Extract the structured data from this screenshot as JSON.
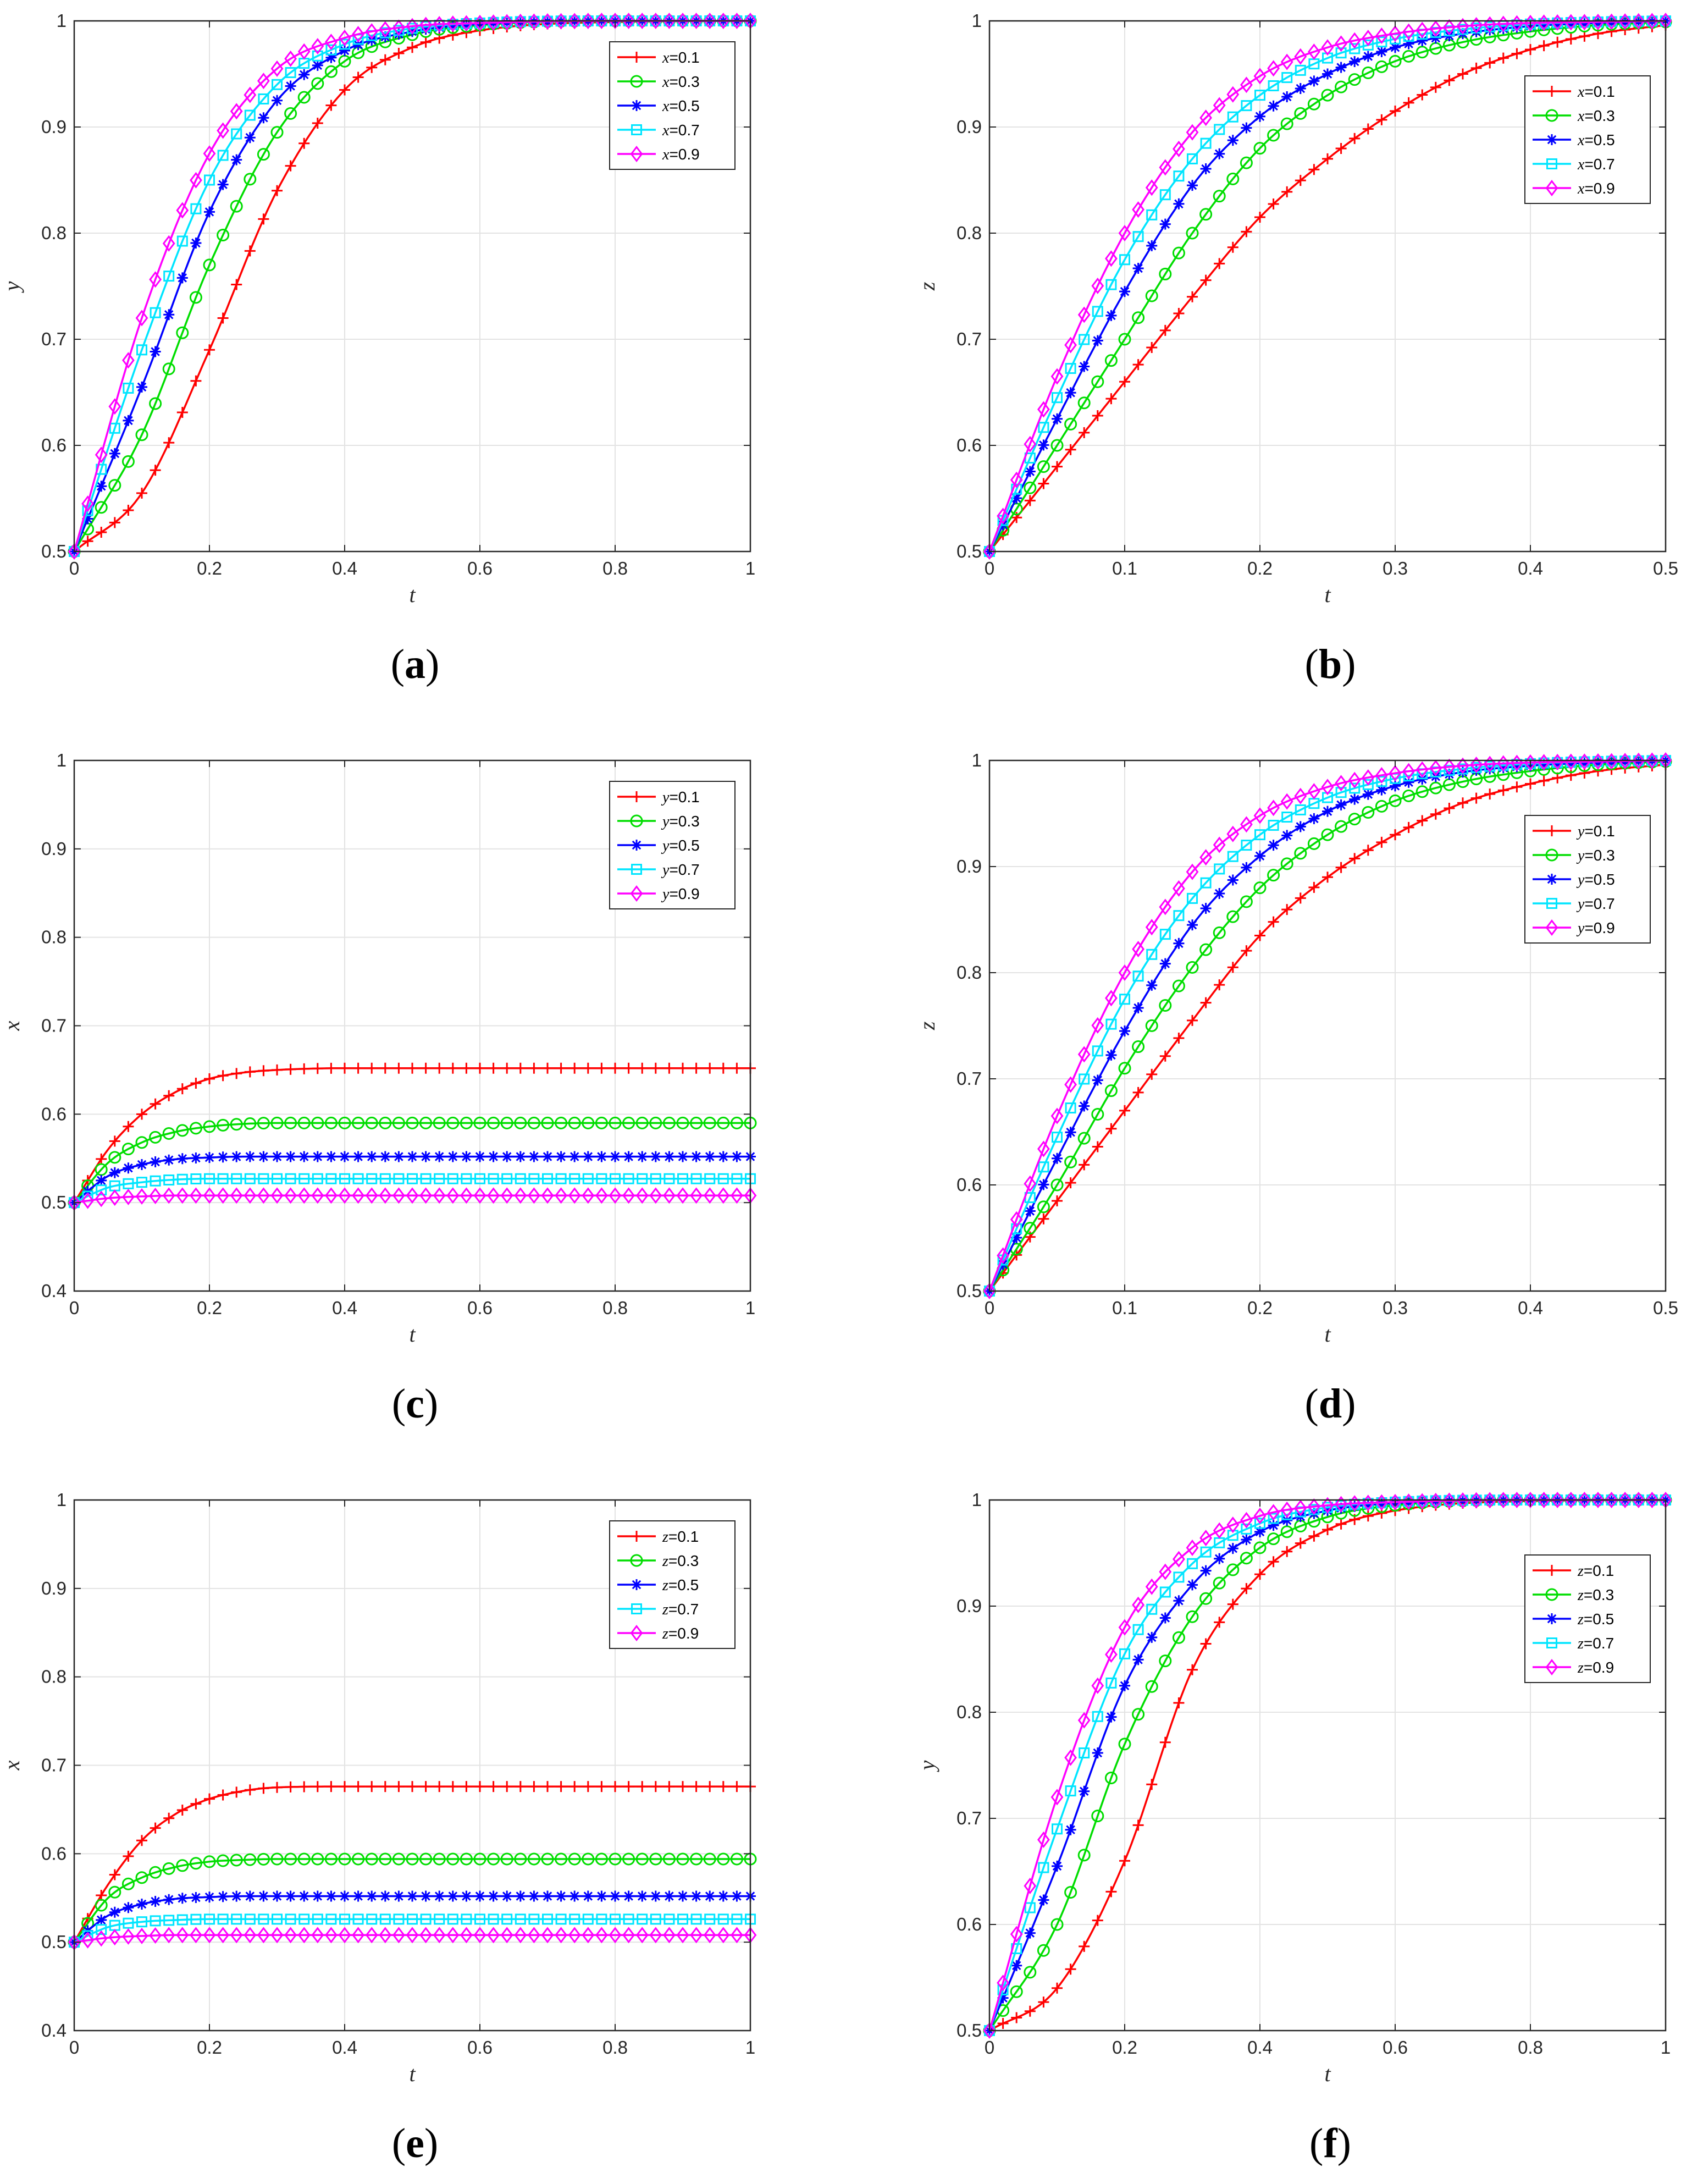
{
  "figure": {
    "caption_open": "(",
    "caption_close": ")"
  },
  "chart_data": [
    {
      "type": "line",
      "panel": "a",
      "caption": "a",
      "xlabel": "t",
      "ylabel": "y",
      "xlim": [
        0,
        1
      ],
      "ylim": [
        0.5,
        1
      ],
      "xticks": [
        0,
        0.2,
        0.4,
        0.6,
        0.8,
        1
      ],
      "yticks": [
        0.5,
        0.6,
        0.7,
        0.8,
        0.9,
        1
      ],
      "grid": true,
      "legend_loc": "top-right",
      "series": [
        {
          "name": "x=0.1",
          "var": "x",
          "eq": "=0.1",
          "color": "#ff0000",
          "marker": "plus",
          "x": [
            0,
            0.1,
            0.2,
            0.3,
            0.4,
            0.5,
            0.6,
            0.8,
            1
          ],
          "y": [
            0.5,
            0.555,
            0.69,
            0.84,
            0.935,
            0.975,
            0.991,
            0.999,
            1.0
          ]
        },
        {
          "name": "x=0.3",
          "var": "x",
          "eq": "=0.3",
          "color": "#00dd00",
          "marker": "circle",
          "x": [
            0,
            0.1,
            0.2,
            0.3,
            0.4,
            0.5,
            0.6,
            0.8,
            1
          ],
          "y": [
            0.5,
            0.61,
            0.77,
            0.895,
            0.962,
            0.987,
            0.996,
            1.0,
            1.0
          ]
        },
        {
          "name": "x=0.5",
          "var": "x",
          "eq": "=0.5",
          "color": "#0000ff",
          "marker": "star",
          "x": [
            0,
            0.1,
            0.2,
            0.3,
            0.4,
            0.5,
            0.6,
            0.8,
            1
          ],
          "y": [
            0.5,
            0.655,
            0.82,
            0.925,
            0.972,
            0.99,
            0.997,
            1.0,
            1.0
          ]
        },
        {
          "name": "x=0.7",
          "var": "x",
          "eq": "=0.7",
          "color": "#00e5ff",
          "marker": "square",
          "x": [
            0,
            0.1,
            0.2,
            0.3,
            0.4,
            0.5,
            0.6,
            0.8,
            1
          ],
          "y": [
            0.5,
            0.69,
            0.85,
            0.94,
            0.978,
            0.993,
            0.998,
            1.0,
            1.0
          ]
        },
        {
          "name": "x=0.9",
          "var": "x",
          "eq": "=0.9",
          "color": "#ff00ff",
          "marker": "diamond",
          "x": [
            0,
            0.1,
            0.2,
            0.3,
            0.4,
            0.5,
            0.6,
            0.8,
            1
          ],
          "y": [
            0.5,
            0.72,
            0.875,
            0.955,
            0.984,
            0.995,
            0.998,
            1.0,
            1.0
          ]
        }
      ]
    },
    {
      "type": "line",
      "panel": "b",
      "caption": "b",
      "xlabel": "t",
      "ylabel": "z",
      "xlim": [
        0,
        0.5
      ],
      "ylim": [
        0.5,
        1
      ],
      "xticks": [
        0,
        0.1,
        0.2,
        0.3,
        0.4,
        0.5
      ],
      "yticks": [
        0.5,
        0.6,
        0.7,
        0.8,
        0.9,
        1
      ],
      "grid": true,
      "legend_loc": "top-right",
      "series": [
        {
          "name": "x=0.1",
          "var": "x",
          "eq": "=0.1",
          "color": "#ff0000",
          "marker": "plus",
          "x": [
            0,
            0.05,
            0.1,
            0.15,
            0.2,
            0.25,
            0.3,
            0.35,
            0.4,
            0.45,
            0.5
          ],
          "y": [
            0.5,
            0.58,
            0.66,
            0.74,
            0.815,
            0.87,
            0.915,
            0.95,
            0.973,
            0.988,
            0.996
          ]
        },
        {
          "name": "x=0.3",
          "var": "x",
          "eq": "=0.3",
          "color": "#00dd00",
          "marker": "circle",
          "x": [
            0,
            0.05,
            0.1,
            0.15,
            0.2,
            0.25,
            0.3,
            0.35,
            0.4,
            0.45,
            0.5
          ],
          "y": [
            0.5,
            0.6,
            0.7,
            0.8,
            0.88,
            0.93,
            0.962,
            0.98,
            0.99,
            0.996,
            0.999
          ]
        },
        {
          "name": "x=0.5",
          "var": "x",
          "eq": "=0.5",
          "color": "#0000ff",
          "marker": "star",
          "x": [
            0,
            0.05,
            0.1,
            0.15,
            0.2,
            0.25,
            0.3,
            0.35,
            0.4,
            0.45,
            0.5
          ],
          "y": [
            0.5,
            0.625,
            0.745,
            0.845,
            0.91,
            0.95,
            0.975,
            0.988,
            0.995,
            0.998,
            1.0
          ]
        },
        {
          "name": "x=0.7",
          "var": "x",
          "eq": "=0.7",
          "color": "#00e5ff",
          "marker": "square",
          "x": [
            0,
            0.05,
            0.1,
            0.15,
            0.2,
            0.25,
            0.3,
            0.35,
            0.4,
            0.45,
            0.5
          ],
          "y": [
            0.5,
            0.645,
            0.775,
            0.87,
            0.93,
            0.965,
            0.983,
            0.992,
            0.997,
            0.999,
            1.0
          ]
        },
        {
          "name": "x=0.9",
          "var": "x",
          "eq": "=0.9",
          "color": "#ff00ff",
          "marker": "diamond",
          "x": [
            0,
            0.05,
            0.1,
            0.15,
            0.2,
            0.25,
            0.3,
            0.35,
            0.4,
            0.45,
            0.5
          ],
          "y": [
            0.5,
            0.665,
            0.8,
            0.895,
            0.948,
            0.975,
            0.988,
            0.995,
            0.998,
            0.999,
            1.0
          ]
        }
      ]
    },
    {
      "type": "line",
      "panel": "c",
      "caption": "c",
      "xlabel": "t",
      "ylabel": "x",
      "xlim": [
        0,
        1
      ],
      "ylim": [
        0.4,
        1
      ],
      "xticks": [
        0,
        0.2,
        0.4,
        0.6,
        0.8,
        1
      ],
      "yticks": [
        0.4,
        0.5,
        0.6,
        0.7,
        0.8,
        0.9,
        1
      ],
      "grid": true,
      "legend_loc": "top-right",
      "series": [
        {
          "name": "y=0.1",
          "var": "y",
          "eq": "=0.1",
          "color": "#ff0000",
          "marker": "plus",
          "x": [
            0,
            0.05,
            0.1,
            0.15,
            0.2,
            0.25,
            0.3,
            0.4,
            0.6,
            1
          ],
          "y": [
            0.5,
            0.56,
            0.6,
            0.625,
            0.64,
            0.647,
            0.65,
            0.652,
            0.652,
            0.652
          ]
        },
        {
          "name": "y=0.3",
          "var": "y",
          "eq": "=0.3",
          "color": "#00dd00",
          "marker": "circle",
          "x": [
            0,
            0.05,
            0.1,
            0.15,
            0.2,
            0.25,
            0.3,
            0.4,
            0.6,
            1
          ],
          "y": [
            0.5,
            0.545,
            0.568,
            0.58,
            0.586,
            0.589,
            0.59,
            0.59,
            0.59,
            0.59
          ]
        },
        {
          "name": "y=0.5",
          "var": "y",
          "eq": "=0.5",
          "color": "#0000ff",
          "marker": "star",
          "x": [
            0,
            0.05,
            0.1,
            0.15,
            0.2,
            0.25,
            0.3,
            0.4,
            0.6,
            1
          ],
          "y": [
            0.5,
            0.53,
            0.543,
            0.549,
            0.551,
            0.552,
            0.552,
            0.552,
            0.552,
            0.552
          ]
        },
        {
          "name": "y=0.7",
          "var": "y",
          "eq": "=0.7",
          "color": "#00e5ff",
          "marker": "square",
          "x": [
            0,
            0.05,
            0.1,
            0.15,
            0.2,
            0.25,
            0.3,
            0.4,
            0.6,
            1
          ],
          "y": [
            0.5,
            0.517,
            0.523,
            0.526,
            0.527,
            0.527,
            0.527,
            0.527,
            0.527,
            0.527
          ]
        },
        {
          "name": "y=0.9",
          "var": "y",
          "eq": "=0.9",
          "color": "#ff00ff",
          "marker": "diamond",
          "x": [
            0,
            0.05,
            0.1,
            0.15,
            0.2,
            0.25,
            0.3,
            0.4,
            0.6,
            1
          ],
          "y": [
            0.5,
            0.505,
            0.507,
            0.508,
            0.508,
            0.508,
            0.508,
            0.508,
            0.508,
            0.508
          ]
        }
      ]
    },
    {
      "type": "line",
      "panel": "d",
      "caption": "d",
      "xlabel": "t",
      "ylabel": "z",
      "xlim": [
        0,
        0.5
      ],
      "ylim": [
        0.5,
        1
      ],
      "xticks": [
        0,
        0.1,
        0.2,
        0.3,
        0.4,
        0.5
      ],
      "yticks": [
        0.5,
        0.6,
        0.7,
        0.8,
        0.9,
        1
      ],
      "grid": true,
      "legend_loc": "top-right",
      "series": [
        {
          "name": "y=0.1",
          "var": "y",
          "eq": "=0.1",
          "color": "#ff0000",
          "marker": "plus",
          "x": [
            0,
            0.05,
            0.1,
            0.15,
            0.2,
            0.25,
            0.3,
            0.35,
            0.4,
            0.45,
            0.5
          ],
          "y": [
            0.5,
            0.585,
            0.67,
            0.755,
            0.835,
            0.89,
            0.93,
            0.96,
            0.978,
            0.99,
            0.996
          ]
        },
        {
          "name": "y=0.3",
          "var": "y",
          "eq": "=0.3",
          "color": "#00dd00",
          "marker": "circle",
          "x": [
            0,
            0.05,
            0.1,
            0.15,
            0.2,
            0.25,
            0.3,
            0.35,
            0.4,
            0.45,
            0.5
          ],
          "y": [
            0.5,
            0.6,
            0.71,
            0.805,
            0.88,
            0.93,
            0.962,
            0.98,
            0.99,
            0.996,
            0.999
          ]
        },
        {
          "name": "y=0.5",
          "var": "y",
          "eq": "=0.5",
          "color": "#0000ff",
          "marker": "star",
          "x": [
            0,
            0.05,
            0.1,
            0.15,
            0.2,
            0.25,
            0.3,
            0.35,
            0.4,
            0.45,
            0.5
          ],
          "y": [
            0.5,
            0.625,
            0.745,
            0.845,
            0.91,
            0.952,
            0.976,
            0.989,
            0.995,
            0.998,
            1.0
          ]
        },
        {
          "name": "y=0.7",
          "var": "y",
          "eq": "=0.7",
          "color": "#00e5ff",
          "marker": "square",
          "x": [
            0,
            0.05,
            0.1,
            0.15,
            0.2,
            0.25,
            0.3,
            0.35,
            0.4,
            0.45,
            0.5
          ],
          "y": [
            0.5,
            0.645,
            0.775,
            0.87,
            0.93,
            0.965,
            0.983,
            0.992,
            0.997,
            0.999,
            1.0
          ]
        },
        {
          "name": "y=0.9",
          "var": "y",
          "eq": "=0.9",
          "color": "#ff00ff",
          "marker": "diamond",
          "x": [
            0,
            0.05,
            0.1,
            0.15,
            0.2,
            0.25,
            0.3,
            0.35,
            0.4,
            0.45,
            0.5
          ],
          "y": [
            0.5,
            0.665,
            0.8,
            0.895,
            0.948,
            0.975,
            0.988,
            0.995,
            0.998,
            0.999,
            1.0
          ]
        }
      ]
    },
    {
      "type": "line",
      "panel": "e",
      "caption": "e",
      "xlabel": "t",
      "ylabel": "x",
      "xlim": [
        0,
        1
      ],
      "ylim": [
        0.4,
        1
      ],
      "xticks": [
        0,
        0.2,
        0.4,
        0.6,
        0.8,
        1
      ],
      "yticks": [
        0.4,
        0.5,
        0.6,
        0.7,
        0.8,
        0.9,
        1
      ],
      "grid": true,
      "legend_loc": "top-right",
      "series": [
        {
          "name": "z=0.1",
          "var": "z",
          "eq": "=0.1",
          "color": "#ff0000",
          "marker": "plus",
          "x": [
            0,
            0.05,
            0.1,
            0.15,
            0.2,
            0.25,
            0.3,
            0.4,
            0.6,
            1
          ],
          "y": [
            0.5,
            0.565,
            0.615,
            0.645,
            0.662,
            0.671,
            0.675,
            0.676,
            0.676,
            0.676
          ]
        },
        {
          "name": "z=0.3",
          "var": "z",
          "eq": "=0.3",
          "color": "#00dd00",
          "marker": "circle",
          "x": [
            0,
            0.05,
            0.1,
            0.15,
            0.2,
            0.25,
            0.3,
            0.4,
            0.6,
            1
          ],
          "y": [
            0.5,
            0.55,
            0.573,
            0.585,
            0.591,
            0.593,
            0.594,
            0.594,
            0.594,
            0.594
          ]
        },
        {
          "name": "z=0.5",
          "var": "z",
          "eq": "=0.5",
          "color": "#0000ff",
          "marker": "star",
          "x": [
            0,
            0.05,
            0.1,
            0.15,
            0.2,
            0.25,
            0.3,
            0.4,
            0.6,
            1
          ],
          "y": [
            0.5,
            0.53,
            0.543,
            0.549,
            0.551,
            0.552,
            0.552,
            0.552,
            0.552,
            0.552
          ]
        },
        {
          "name": "z=0.7",
          "var": "z",
          "eq": "=0.7",
          "color": "#00e5ff",
          "marker": "square",
          "x": [
            0,
            0.05,
            0.1,
            0.15,
            0.2,
            0.25,
            0.3,
            0.4,
            0.6,
            1
          ],
          "y": [
            0.5,
            0.517,
            0.523,
            0.525,
            0.526,
            0.526,
            0.526,
            0.526,
            0.526,
            0.526
          ]
        },
        {
          "name": "z=0.9",
          "var": "z",
          "eq": "=0.9",
          "color": "#ff00ff",
          "marker": "diamond",
          "x": [
            0,
            0.05,
            0.1,
            0.15,
            0.2,
            0.25,
            0.3,
            0.4,
            0.6,
            1
          ],
          "y": [
            0.5,
            0.505,
            0.507,
            0.508,
            0.508,
            0.508,
            0.508,
            0.508,
            0.508,
            0.508
          ]
        }
      ]
    },
    {
      "type": "line",
      "panel": "f",
      "caption": "f",
      "xlabel": "t",
      "ylabel": "y",
      "xlim": [
        0,
        1
      ],
      "ylim": [
        0.5,
        1
      ],
      "xticks": [
        0,
        0.2,
        0.4,
        0.6,
        0.8,
        1
      ],
      "yticks": [
        0.5,
        0.6,
        0.7,
        0.8,
        0.9,
        1
      ],
      "grid": true,
      "legend_loc": "top-right",
      "series": [
        {
          "name": "z=0.1",
          "var": "z",
          "eq": "=0.1",
          "color": "#ff0000",
          "marker": "plus",
          "x": [
            0,
            0.1,
            0.2,
            0.3,
            0.4,
            0.5,
            0.6,
            0.8,
            1
          ],
          "y": [
            0.5,
            0.54,
            0.66,
            0.84,
            0.93,
            0.972,
            0.99,
            0.999,
            1.0
          ]
        },
        {
          "name": "z=0.3",
          "var": "z",
          "eq": "=0.3",
          "color": "#00dd00",
          "marker": "circle",
          "x": [
            0,
            0.1,
            0.2,
            0.3,
            0.4,
            0.5,
            0.6,
            0.8,
            1
          ],
          "y": [
            0.5,
            0.6,
            0.77,
            0.89,
            0.955,
            0.984,
            0.995,
            1.0,
            1.0
          ]
        },
        {
          "name": "z=0.5",
          "var": "z",
          "eq": "=0.5",
          "color": "#0000ff",
          "marker": "star",
          "x": [
            0,
            0.1,
            0.2,
            0.3,
            0.4,
            0.5,
            0.6,
            0.8,
            1
          ],
          "y": [
            0.5,
            0.655,
            0.825,
            0.92,
            0.97,
            0.99,
            0.997,
            1.0,
            1.0
          ]
        },
        {
          "name": "z=0.7",
          "var": "z",
          "eq": "=0.7",
          "color": "#00e5ff",
          "marker": "square",
          "x": [
            0,
            0.1,
            0.2,
            0.3,
            0.4,
            0.5,
            0.6,
            0.8,
            1
          ],
          "y": [
            0.5,
            0.69,
            0.855,
            0.94,
            0.978,
            0.993,
            0.998,
            1.0,
            1.0
          ]
        },
        {
          "name": "z=0.9",
          "var": "z",
          "eq": "=0.9",
          "color": "#ff00ff",
          "marker": "diamond",
          "x": [
            0,
            0.1,
            0.2,
            0.3,
            0.4,
            0.5,
            0.6,
            0.8,
            1
          ],
          "y": [
            0.5,
            0.72,
            0.88,
            0.955,
            0.985,
            0.995,
            0.998,
            1.0,
            1.0
          ]
        }
      ]
    }
  ]
}
